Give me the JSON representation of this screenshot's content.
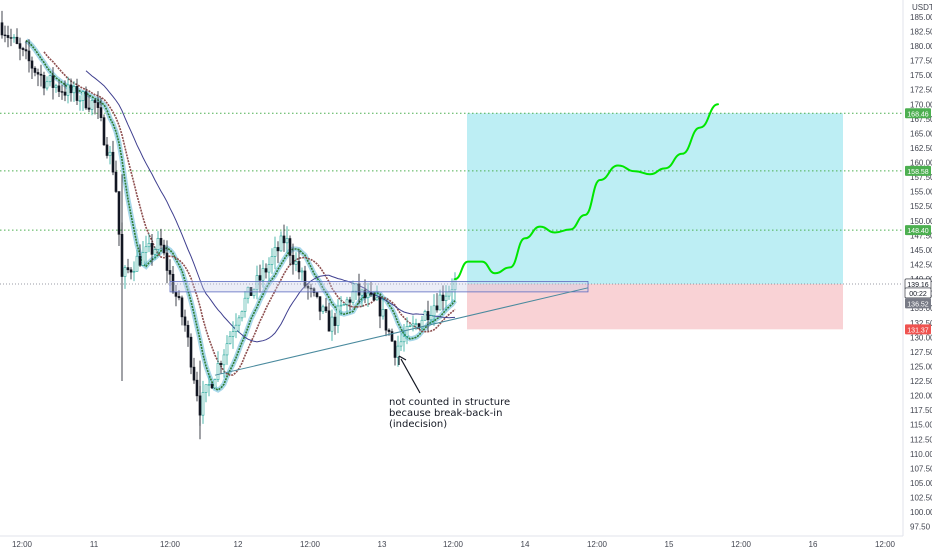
{
  "chart_data": {
    "type": "candlestick",
    "currency": "USDT",
    "y_ticks": [
      97.5,
      100,
      102.5,
      105,
      107.5,
      110,
      112.5,
      115,
      117.5,
      120,
      122.5,
      125,
      127.5,
      130,
      132.5,
      135,
      137.5,
      140,
      142.5,
      145,
      147.5,
      150,
      152.5,
      155,
      157.5,
      160,
      162.5,
      165,
      167.5,
      170,
      172.5,
      175,
      177.5,
      180,
      182.5,
      185
    ],
    "ylim": [
      95.9,
      187.9
    ],
    "x_ticks": [
      "12:00",
      "11",
      "12:00",
      "12",
      "12:00",
      "13",
      "12:00",
      "14",
      "12:00",
      "15",
      "12:00",
      "16",
      "12:00"
    ],
    "price_badges": [
      {
        "value": "168.46",
        "color": "#4caf50"
      },
      {
        "value": "158.58",
        "color": "#4caf50"
      },
      {
        "value": "148.40",
        "color": "#4caf50"
      },
      {
        "value": "139.16",
        "color": "#ffffff",
        "text": "#131722"
      },
      {
        "value": "00:22",
        "color": "#ffffff",
        "text": "#131722"
      },
      {
        "value": "136.52",
        "color": "#787b86"
      },
      {
        "value": "131.37",
        "color": "#ef5350"
      }
    ],
    "target_levels": [
      168.46,
      158.58,
      148.4
    ],
    "last_price": 139.16,
    "stop_level": 131.37,
    "annotation": {
      "lines": [
        "not counted in structure",
        "because break-back-in",
        "(indecision)"
      ]
    },
    "colors": {
      "up": "#26a69a",
      "down": "#131722",
      "target_zone": "#b2ebf2",
      "stop_zone": "#f8cdd0",
      "projection": "#00e600",
      "level_line": "#4caf50",
      "trendline": "#4a8a9e"
    }
  }
}
